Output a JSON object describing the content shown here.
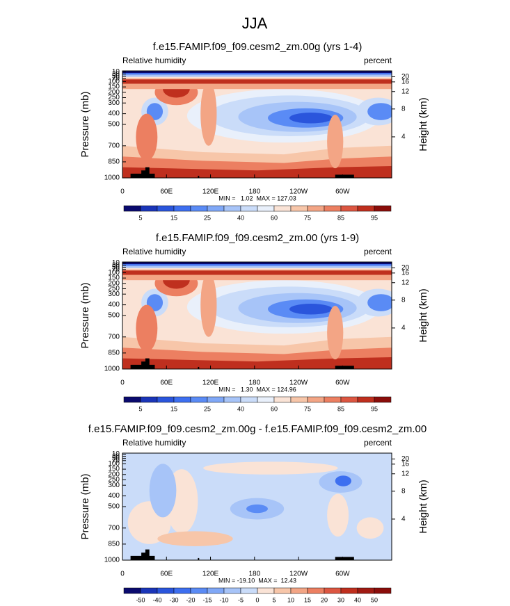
{
  "title": "JJA",
  "chart_data": [
    {
      "type": "contour",
      "title": "f.e15.FAMIP.f09_f09.cesm2_zm.00g (yrs 1-4)",
      "left_label": "Relative humidity",
      "right_label": "percent",
      "ylabel": "Pressure (mb)",
      "y2label": "Height (km)",
      "xlim": [
        0,
        367
      ],
      "xticks": [
        0,
        {
          "value": 60,
          "label": "60E"
        },
        {
          "value": 120,
          "label": "120E"
        },
        180,
        {
          "value": 240,
          "label": "120W"
        },
        {
          "value": 300,
          "label": "60W"
        }
      ],
      "ylim": [
        1000,
        0
      ],
      "yticks": [
        10,
        30,
        50,
        70,
        100,
        150,
        200,
        250,
        300,
        400,
        500,
        700,
        850,
        1000
      ],
      "y2ticks": [
        4,
        8,
        12,
        16,
        20
      ],
      "stats": "MIN =   1.02  MAX = 127.03",
      "colorbar": {
        "labels": [
          5,
          15,
          25,
          40,
          60,
          75,
          85,
          95
        ],
        "colors": [
          "#0a0a6e",
          "#1a35b8",
          "#2a55dc",
          "#3d6ff0",
          "#5a8bf5",
          "#80a8f7",
          "#a7c4f8",
          "#cadcf9",
          "#e9f0fb",
          "#fae3d6",
          "#f7c6a9",
          "#f3a585",
          "#ec7f61",
          "#dc5641",
          "#bf2f1e",
          "#8a0d0a"
        ]
      }
    },
    {
      "type": "contour",
      "title": "f.e15.FAMIP.f09_f09.cesm2_zm.00 (yrs 1-9)",
      "left_label": "Relative humidity",
      "right_label": "percent",
      "ylabel": "Pressure (mb)",
      "y2label": "Height (km)",
      "xlim": [
        0,
        367
      ],
      "xticks": [
        0,
        {
          "value": 60,
          "label": "60E"
        },
        {
          "value": 120,
          "label": "120E"
        },
        180,
        {
          "value": 240,
          "label": "120W"
        },
        {
          "value": 300,
          "label": "60W"
        }
      ],
      "ylim": [
        1000,
        0
      ],
      "yticks": [
        10,
        30,
        50,
        70,
        100,
        150,
        200,
        250,
        300,
        400,
        500,
        700,
        850,
        1000
      ],
      "y2ticks": [
        4,
        8,
        12,
        16,
        20
      ],
      "stats": "MIN =   1.30  MAX = 124.96",
      "colorbar": {
        "labels": [
          5,
          15,
          25,
          40,
          60,
          75,
          85,
          95
        ],
        "colors": [
          "#0a0a6e",
          "#1a35b8",
          "#2a55dc",
          "#3d6ff0",
          "#5a8bf5",
          "#80a8f7",
          "#a7c4f8",
          "#cadcf9",
          "#e9f0fb",
          "#fae3d6",
          "#f7c6a9",
          "#f3a585",
          "#ec7f61",
          "#dc5641",
          "#bf2f1e",
          "#8a0d0a"
        ]
      }
    },
    {
      "type": "contour",
      "title": "f.e15.FAMIP.f09_f09.cesm2_zm.00g - f.e15.FAMIP.f09_f09.cesm2_zm.00",
      "left_label": "Relative humidity",
      "right_label": "percent",
      "ylabel": "Pressure (mb)",
      "y2label": "Height (km)",
      "xlim": [
        0,
        367
      ],
      "xticks": [
        0,
        {
          "value": 60,
          "label": "60E"
        },
        {
          "value": 120,
          "label": "120E"
        },
        180,
        {
          "value": 240,
          "label": "120W"
        },
        {
          "value": 300,
          "label": "60W"
        }
      ],
      "ylim": [
        1000,
        0
      ],
      "yticks": [
        10,
        30,
        50,
        70,
        100,
        150,
        200,
        250,
        300,
        400,
        500,
        700,
        850,
        1000
      ],
      "y2ticks": [
        4,
        8,
        12,
        16,
        20
      ],
      "stats": "MIN = -19.10  MAX =  12.43",
      "colorbar": {
        "labels": [
          -50,
          -40,
          -30,
          -20,
          -15,
          -10,
          -5,
          0,
          5,
          10,
          15,
          20,
          30,
          40,
          50
        ],
        "colors": [
          "#0a0a6e",
          "#1a35b8",
          "#2a55dc",
          "#3d6ff0",
          "#5a8bf5",
          "#80a8f7",
          "#a7c4f8",
          "#cadcf9",
          "#fae3d6",
          "#f7c6a9",
          "#f3a585",
          "#ec7f61",
          "#dc5641",
          "#bf2f1e",
          "#a01a12",
          "#8a0d0a"
        ]
      }
    }
  ]
}
